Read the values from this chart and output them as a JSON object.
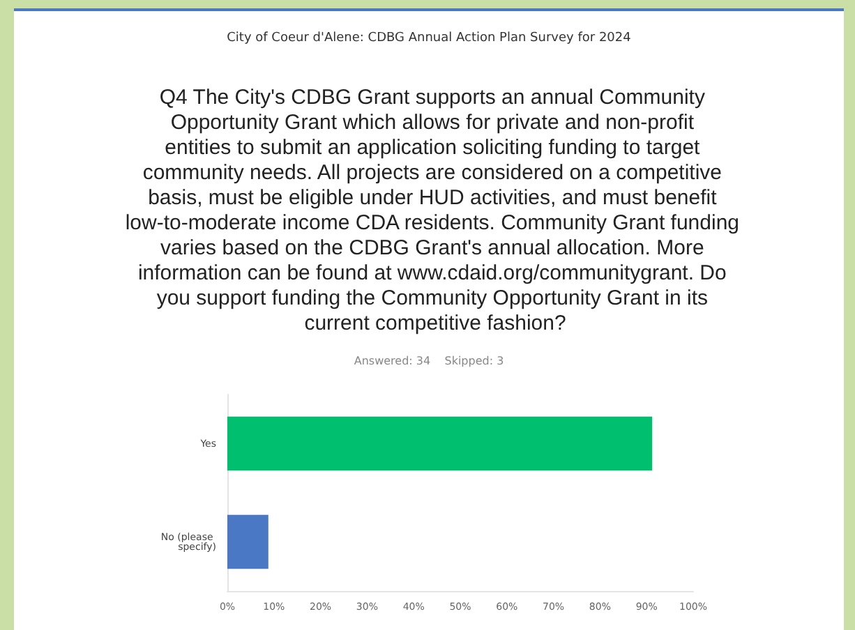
{
  "chart_data": {
    "type": "bar",
    "orientation": "horizontal",
    "title": "Q4 The City's CDBG Grant supports an annual Community Opportunity Grant which allows for private and non-profit entities to submit an application soliciting funding to target community needs. All projects are considered on a competitive basis, must be eligible under HUD activities, and must benefit low-to-moderate income CDA residents. Community Grant funding varies based on the CDBG Grant's annual allocation. More information can be found at www.cdaid.org/communitygrant. Do you support funding the Community Opportunity Grant in its current competitive fashion?",
    "subtitle": "Answered: 34    Skipped: 3",
    "annotations": [
      "City of Coeur d'Alene: CDBG Annual Action Plan Survey for 2024"
    ],
    "categories": [
      "Yes",
      "No (please specify)"
    ],
    "values": [
      91.2,
      8.8
    ],
    "colors": [
      "#00bf6f",
      "#4a78c4"
    ],
    "xlim": [
      0,
      100
    ],
    "xticks": [
      {
        "value": 0,
        "label": "0%"
      },
      {
        "value": 10,
        "label": "10%"
      },
      {
        "value": 20,
        "label": "20%"
      },
      {
        "value": 30,
        "label": "30%"
      },
      {
        "value": 40,
        "label": "40%"
      },
      {
        "value": 50,
        "label": "50%"
      },
      {
        "value": 60,
        "label": "60%"
      },
      {
        "value": 70,
        "label": "70%"
      },
      {
        "value": 80,
        "label": "80%"
      },
      {
        "value": 90,
        "label": "90%"
      },
      {
        "value": 100,
        "label": "100%"
      }
    ],
    "grid": false
  }
}
